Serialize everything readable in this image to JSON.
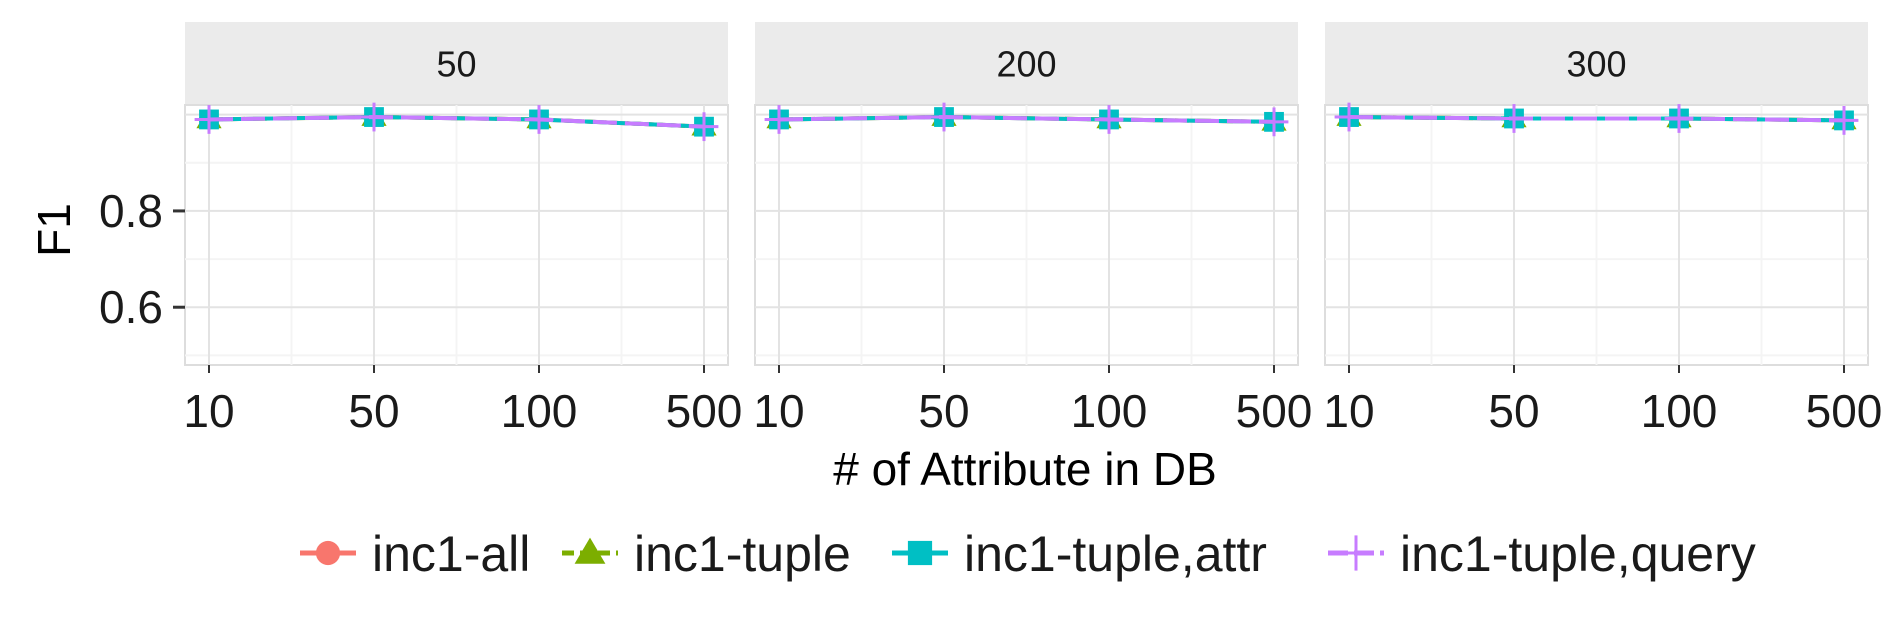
{
  "chart_data": {
    "type": "line",
    "facet_by": "",
    "panels": [
      {
        "label": "50",
        "series": [
          {
            "name": "inc1-all",
            "values": [
              0.99,
              0.995,
              0.99,
              0.975
            ]
          },
          {
            "name": "inc1-tuple",
            "values": [
              0.99,
              0.995,
              0.99,
              0.975
            ]
          },
          {
            "name": "inc1-tuple,attr",
            "values": [
              0.99,
              0.995,
              0.99,
              0.975
            ]
          },
          {
            "name": "inc1-tuple,query",
            "values": [
              0.99,
              0.995,
              0.99,
              0.975
            ]
          }
        ]
      },
      {
        "label": "200",
        "series": [
          {
            "name": "inc1-all",
            "values": [
              0.99,
              0.995,
              0.99,
              0.985
            ]
          },
          {
            "name": "inc1-tuple",
            "values": [
              0.99,
              0.995,
              0.99,
              0.985
            ]
          },
          {
            "name": "inc1-tuple,attr",
            "values": [
              0.99,
              0.995,
              0.99,
              0.985
            ]
          },
          {
            "name": "inc1-tuple,query",
            "values": [
              0.99,
              0.995,
              0.99,
              0.985
            ]
          }
        ]
      },
      {
        "label": "300",
        "series": [
          {
            "name": "inc1-all",
            "values": [
              0.995,
              0.992,
              0.992,
              0.988
            ]
          },
          {
            "name": "inc1-tuple",
            "values": [
              0.995,
              0.992,
              0.992,
              0.988
            ]
          },
          {
            "name": "inc1-tuple,attr",
            "values": [
              0.995,
              0.992,
              0.992,
              0.988
            ]
          },
          {
            "name": "inc1-tuple,query",
            "values": [
              0.995,
              0.992,
              0.992,
              0.988
            ]
          }
        ]
      }
    ],
    "categories": [
      "10",
      "50",
      "100",
      "500"
    ],
    "xlabel": "# of Attribute in DB",
    "ylabel": "F1",
    "yticks": [
      0.6,
      0.8
    ],
    "ylim": [
      0.48,
      1.02
    ],
    "legend": "bottom",
    "grid": true,
    "series_styles": [
      {
        "name": "inc1-all",
        "color": "#F8766D",
        "marker": "circle",
        "dash": "solid"
      },
      {
        "name": "inc1-tuple",
        "color": "#7CAE00",
        "marker": "triangle",
        "dash": "dashed"
      },
      {
        "name": "inc1-tuple,attr",
        "color": "#00BFC4",
        "marker": "square",
        "dash": "solid"
      },
      {
        "name": "inc1-tuple,query",
        "color": "#C77CFF",
        "marker": "plus",
        "dash": "longdash"
      }
    ]
  }
}
